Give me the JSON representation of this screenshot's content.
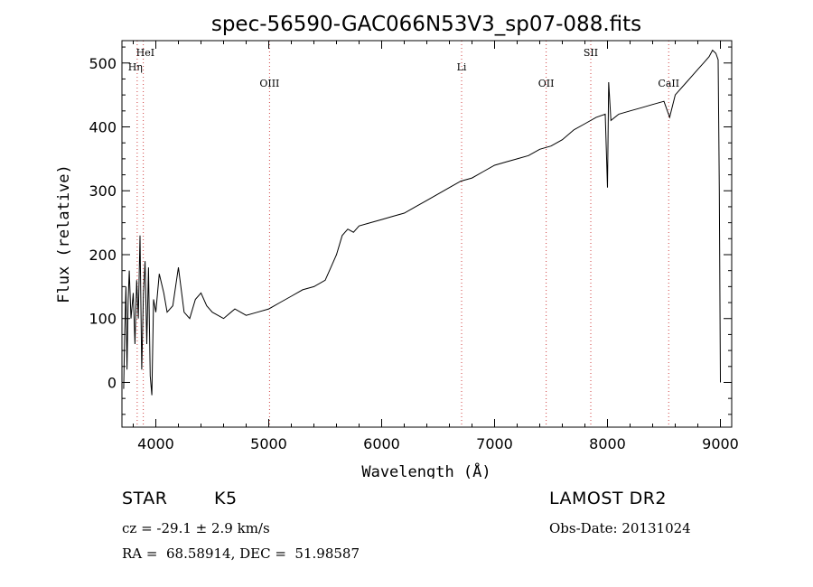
{
  "chart_data": {
    "type": "line",
    "title": "spec-56590-GAC066N53V3_sp07-088.fits",
    "xlabel": "Wavelength (Å)",
    "ylabel": "Flux (relative)",
    "xlim": [
      3700,
      9100
    ],
    "ylim": [
      -70,
      535
    ],
    "xticks": [
      4000,
      5000,
      6000,
      7000,
      8000,
      9000
    ],
    "yticks": [
      0,
      100,
      200,
      300,
      400,
      500
    ],
    "grid": false,
    "lines": [
      {
        "name": "HeI",
        "x": 3889
      },
      {
        "name": "Hη",
        "x": 3835
      },
      {
        "name": "OIII",
        "x": 5007
      },
      {
        "name": "Li",
        "x": 6708
      },
      {
        "name": "OII",
        "x": 7457
      },
      {
        "name": "SII",
        "x": 7852
      },
      {
        "name": "CaII",
        "x": 8542
      }
    ],
    "spectrum": {
      "x": [
        3715,
        3725,
        3735,
        3745,
        3755,
        3765,
        3780,
        3800,
        3815,
        3830,
        3845,
        3860,
        3875,
        3890,
        3905,
        3920,
        3935,
        3950,
        3965,
        3980,
        4000,
        4030,
        4070,
        4100,
        4150,
        4200,
        4250,
        4300,
        4350,
        4400,
        4450,
        4500,
        4600,
        4700,
        4800,
        4900,
        5000,
        5100,
        5200,
        5300,
        5400,
        5500,
        5550,
        5600,
        5650,
        5700,
        5750,
        5800,
        5900,
        6000,
        6100,
        6200,
        6300,
        6400,
        6500,
        6600,
        6700,
        6800,
        6900,
        7000,
        7100,
        7200,
        7300,
        7400,
        7500,
        7600,
        7700,
        7800,
        7900,
        7980,
        8000,
        8010,
        8030,
        8100,
        8200,
        8300,
        8400,
        8500,
        8550,
        8600,
        8700,
        8800,
        8850,
        8900,
        8930,
        8960,
        8980,
        8990,
        9000
      ],
      "y": [
        -10,
        80,
        150,
        20,
        130,
        175,
        100,
        140,
        60,
        160,
        100,
        230,
        20,
        140,
        190,
        60,
        180,
        10,
        -20,
        130,
        110,
        170,
        140,
        110,
        120,
        180,
        110,
        100,
        130,
        140,
        120,
        110,
        100,
        115,
        105,
        110,
        115,
        125,
        135,
        145,
        150,
        160,
        180,
        200,
        230,
        240,
        235,
        245,
        250,
        255,
        260,
        265,
        275,
        285,
        295,
        305,
        315,
        320,
        330,
        340,
        345,
        350,
        355,
        365,
        370,
        380,
        395,
        405,
        415,
        420,
        305,
        470,
        410,
        420,
        425,
        430,
        435,
        440,
        415,
        450,
        470,
        490,
        500,
        510,
        520,
        515,
        505,
        300,
        0
      ]
    }
  },
  "info": {
    "object_class": "STAR",
    "subclass": "K5",
    "cz": "cz = -29.1 ± 2.9 km/s",
    "coords": "RA =  68.58914, DEC =  51.98587",
    "survey": "LAMOST DR2",
    "obs_date": "Obs-Date: 20131024"
  }
}
